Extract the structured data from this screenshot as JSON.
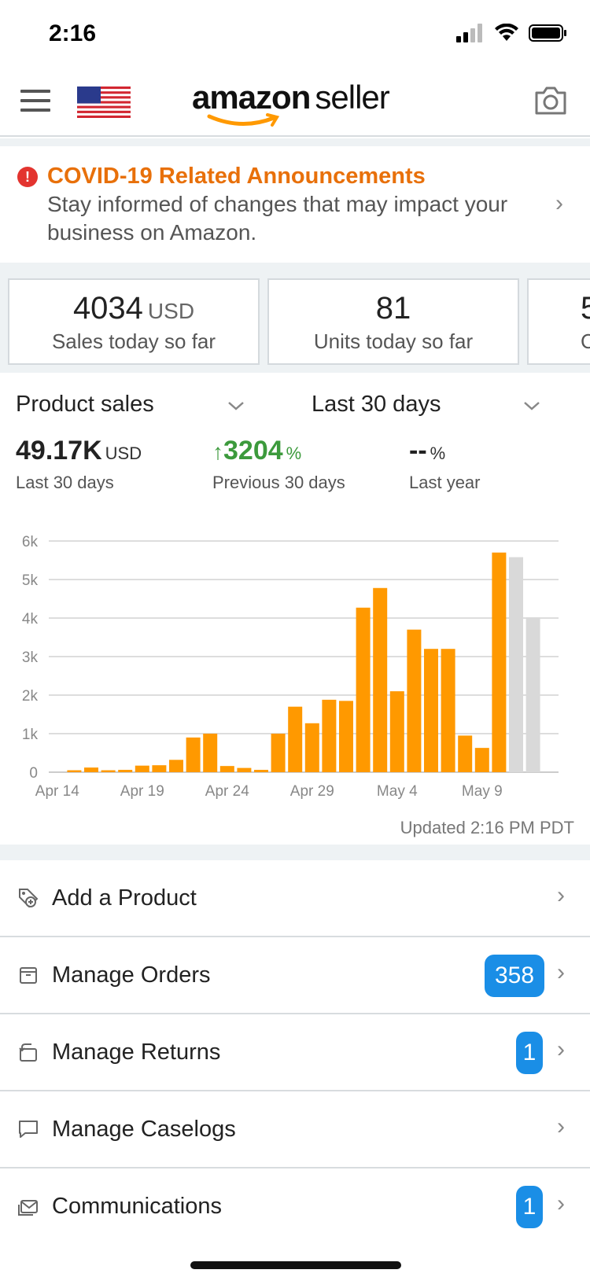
{
  "status_bar": {
    "time": "2:16"
  },
  "header": {
    "logo_brand": "amazon",
    "logo_product": "seller"
  },
  "announcement": {
    "title": "COVID-19 Related Announcements",
    "body": "Stay informed of changes that may impact your business on Amazon.",
    "icon": "!"
  },
  "cards": [
    {
      "value": "4034",
      "unit": "USD",
      "label": "Sales today so far"
    },
    {
      "value": "81",
      "unit": "",
      "label": "Units today so far"
    },
    {
      "value": "5",
      "unit": "",
      "label": "C"
    }
  ],
  "sales": {
    "metric_select": "Product sales",
    "range_select": "Last 30 days",
    "stats": [
      {
        "value": "49.17K",
        "unit": "USD",
        "label": "Last 30 days"
      },
      {
        "value": "3204",
        "unit": "%",
        "label": "Previous 30 days",
        "arrow": "↑"
      },
      {
        "value": "--",
        "unit": "%",
        "label": "Last year"
      }
    ],
    "updated": "Updated 2:16 PM PDT"
  },
  "chart_data": {
    "type": "bar",
    "y_ticks": [
      "0",
      "1k",
      "2k",
      "3k",
      "4k",
      "5k",
      "6k"
    ],
    "ylim": [
      0,
      6000
    ],
    "x_tick_labels": [
      "Apr 14",
      "Apr 19",
      "Apr 24",
      "Apr 29",
      "May 4",
      "May 9"
    ],
    "values": [
      0,
      50,
      120,
      50,
      60,
      170,
      180,
      320,
      900,
      1000,
      160,
      110,
      60,
      1000,
      1700,
      1270,
      1880,
      1850,
      4270,
      4780,
      2100,
      3700,
      3200,
      3200,
      950,
      630,
      5700,
      5580,
      4020
    ],
    "bar_colors": {
      "actual": "#ff9900",
      "projected": "#d9d9d9"
    },
    "projected_from_index": 27,
    "grid": true
  },
  "menu": [
    {
      "label": "Add a Product",
      "badge": "",
      "icon": "tag-plus-icon"
    },
    {
      "label": "Manage Orders",
      "badge": "358",
      "icon": "box-icon"
    },
    {
      "label": "Manage Returns",
      "badge": "1",
      "icon": "return-icon"
    },
    {
      "label": "Manage Caselogs",
      "badge": "",
      "icon": "chat-icon"
    },
    {
      "label": "Communications",
      "badge": "1",
      "icon": "mail-icon"
    }
  ]
}
